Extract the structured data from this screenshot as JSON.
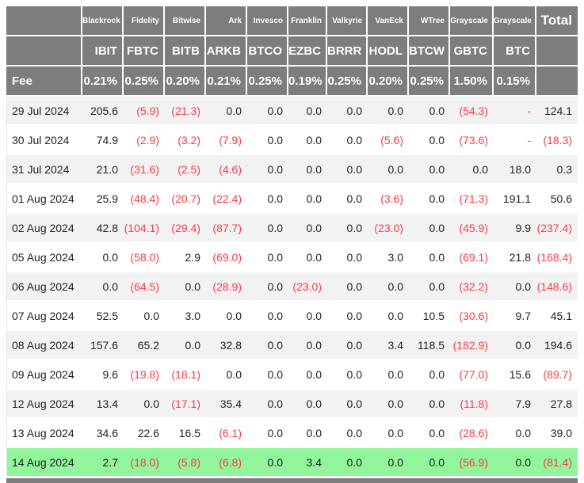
{
  "colors": {
    "header_bg": "#7d7d7d",
    "header_text": "#ffffff",
    "row_stripe": "#f2f2f2",
    "row_plain": "#ffffff",
    "highlight_row_green": "#90f59b",
    "negative_text_red": "#fb3b45",
    "value_text": "#212121"
  },
  "chart_data": {
    "type": "table",
    "fee_row_label": "Fee",
    "total_column_label": "Total",
    "negative_format": "parentheses-red",
    "columns": [
      {
        "issuer": "Blackrock",
        "ticker": "IBIT",
        "fee": "0.21%"
      },
      {
        "issuer": "Fidelity",
        "ticker": "FBTC",
        "fee": "0.25%"
      },
      {
        "issuer": "Bitwise",
        "ticker": "BITB",
        "fee": "0.20%"
      },
      {
        "issuer": "Ark",
        "ticker": "ARKB",
        "fee": "0.21%"
      },
      {
        "issuer": "Invesco",
        "ticker": "BTCO",
        "fee": "0.25%"
      },
      {
        "issuer": "Franklin",
        "ticker": "EZBC",
        "fee": "0.19%"
      },
      {
        "issuer": "Valkyrie",
        "ticker": "BRRR",
        "fee": "0.25%"
      },
      {
        "issuer": "VanEck",
        "ticker": "HODL",
        "fee": "0.20%"
      },
      {
        "issuer": "WTree",
        "ticker": "BTCW",
        "fee": "0.25%"
      },
      {
        "issuer": "Grayscale",
        "ticker": "GBTC",
        "fee": "1.50%"
      },
      {
        "issuer": "Grayscale",
        "ticker": "BTC",
        "fee": "0.15%"
      }
    ],
    "rows": [
      {
        "date": "29 Jul 2024",
        "values": [
          "205.6",
          "(5.9)",
          "(21.3)",
          "0.0",
          "0.0",
          "0.0",
          "0.0",
          "0.0",
          "0.0",
          "(54.3)",
          "-",
          "124.1"
        ],
        "highlighted": false
      },
      {
        "date": "30 Jul 2024",
        "values": [
          "74.9",
          "(2.9)",
          "(3.2)",
          "(7.9)",
          "0.0",
          "0.0",
          "0.0",
          "(5.6)",
          "0.0",
          "(73.6)",
          "-",
          "(18.3)"
        ],
        "highlighted": false
      },
      {
        "date": "31 Jul 2024",
        "values": [
          "21.0",
          "(31.6)",
          "(2.5)",
          "(4.6)",
          "0.0",
          "0.0",
          "0.0",
          "0.0",
          "0.0",
          "0.0",
          "18.0",
          "0.3"
        ],
        "highlighted": false
      },
      {
        "date": "01 Aug 2024",
        "values": [
          "25.9",
          "(48.4)",
          "(20.7)",
          "(22.4)",
          "0.0",
          "0.0",
          "0.0",
          "(3.6)",
          "0.0",
          "(71.3)",
          "191.1",
          "50.6"
        ],
        "highlighted": false
      },
      {
        "date": "02 Aug 2024",
        "values": [
          "42.8",
          "(104.1)",
          "(29.4)",
          "(87.7)",
          "0.0",
          "0.0",
          "0.0",
          "(23.0)",
          "0.0",
          "(45.9)",
          "9.9",
          "(237.4)"
        ],
        "highlighted": false
      },
      {
        "date": "05 Aug 2024",
        "values": [
          "0.0",
          "(58.0)",
          "2.9",
          "(69.0)",
          "0.0",
          "0.0",
          "0.0",
          "3.0",
          "0.0",
          "(69.1)",
          "21.8",
          "(168.4)"
        ],
        "highlighted": false
      },
      {
        "date": "06 Aug 2024",
        "values": [
          "0.0",
          "(64.5)",
          "0.0",
          "(28.9)",
          "0.0",
          "(23.0)",
          "0.0",
          "0.0",
          "0.0",
          "(32.2)",
          "0.0",
          "(148.6)"
        ],
        "highlighted": false
      },
      {
        "date": "07 Aug 2024",
        "values": [
          "52.5",
          "0.0",
          "3.0",
          "0.0",
          "0.0",
          "0.0",
          "0.0",
          "0.0",
          "10.5",
          "(30.6)",
          "9.7",
          "45.1"
        ],
        "highlighted": false
      },
      {
        "date": "08 Aug 2024",
        "values": [
          "157.6",
          "65.2",
          "0.0",
          "32.8",
          "0.0",
          "0.0",
          "0.0",
          "3.4",
          "118.5",
          "(182.9)",
          "0.0",
          "194.6"
        ],
        "highlighted": false
      },
      {
        "date": "09 Aug 2024",
        "values": [
          "9.6",
          "(19.8)",
          "(18.1)",
          "0.0",
          "0.0",
          "0.0",
          "0.0",
          "0.0",
          "0.0",
          "(77.0)",
          "15.6",
          "(89.7)"
        ],
        "highlighted": false
      },
      {
        "date": "12 Aug 2024",
        "values": [
          "13.4",
          "0.0",
          "(17.1)",
          "35.4",
          "0.0",
          "0.0",
          "0.0",
          "0.0",
          "0.0",
          "(11.8)",
          "7.9",
          "27.8"
        ],
        "highlighted": false
      },
      {
        "date": "13 Aug 2024",
        "values": [
          "34.6",
          "22.6",
          "16.5",
          "(6.1)",
          "0.0",
          "0.0",
          "0.0",
          "0.0",
          "0.0",
          "(28.6)",
          "0.0",
          "39.0"
        ],
        "highlighted": false
      },
      {
        "date": "14 Aug 2024",
        "values": [
          "2.7",
          "(18.0)",
          "(5.8)",
          "(6.8)",
          "0.0",
          "3.4",
          "0.0",
          "0.0",
          "0.0",
          "(56.9)",
          "0.0",
          "(81.4)"
        ],
        "highlighted": true
      }
    ]
  }
}
